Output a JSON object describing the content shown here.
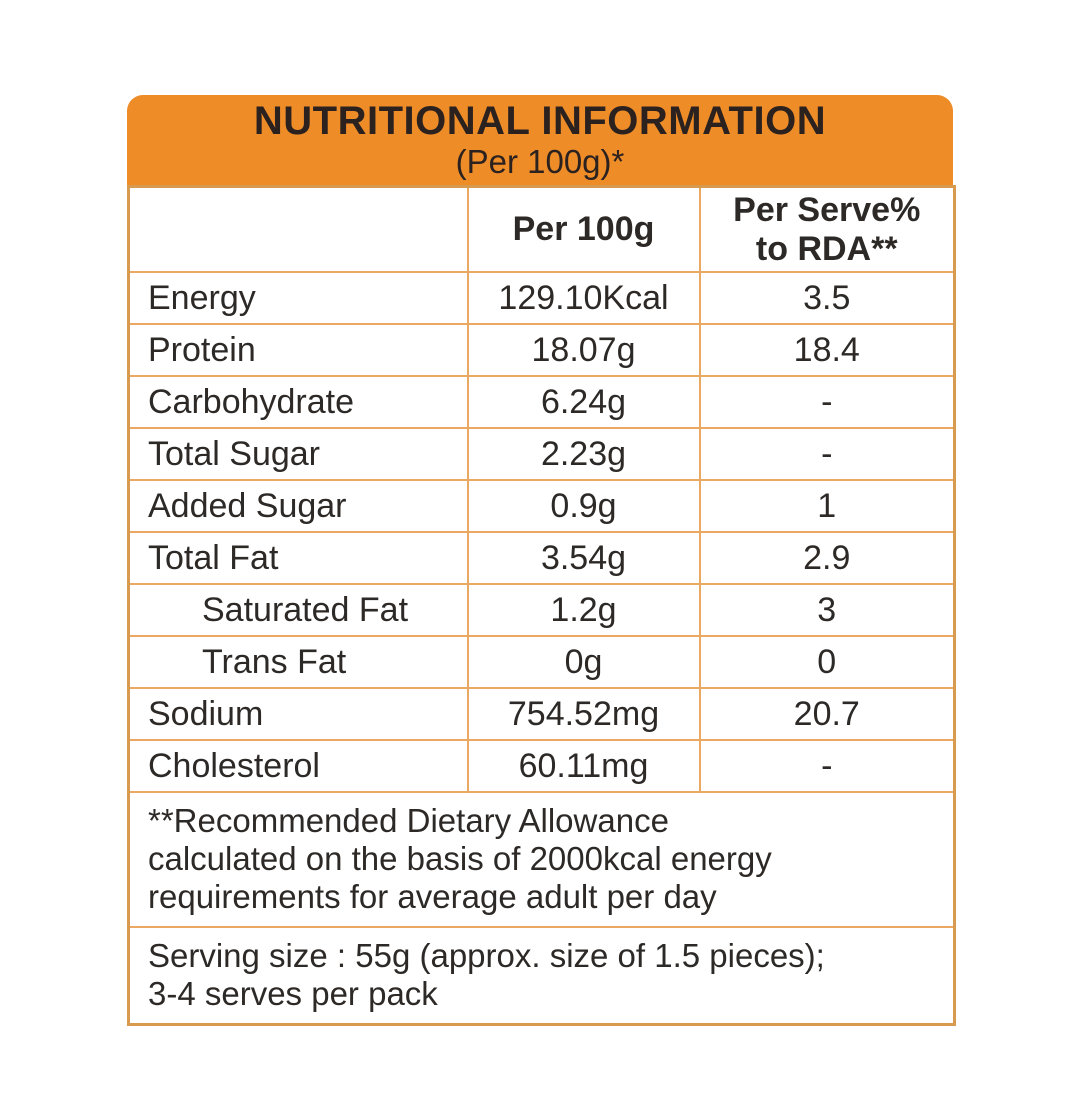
{
  "colors": {
    "accent_orange": "#ee8c28",
    "grid_line": "#eaa863",
    "outer_border": "#d89a4e",
    "text": "#2d2926"
  },
  "header": {
    "title": "NUTRITIONAL INFORMATION",
    "subtitle": "(Per 100g)*"
  },
  "table": {
    "column_headers": {
      "per_100g": "Per 100g",
      "per_serve_line1": "Per Serve%",
      "per_serve_line2": "to RDA**"
    },
    "rows": [
      {
        "label": "Energy",
        "per_100g": "129.10Kcal",
        "per_serve_rda": "3.5"
      },
      {
        "label": "Protein",
        "per_100g": "18.07g",
        "per_serve_rda": "18.4"
      },
      {
        "label": "Carbohydrate",
        "per_100g": "6.24g",
        "per_serve_rda": "-"
      },
      {
        "label": "Total Sugar",
        "per_100g": "2.23g",
        "per_serve_rda": "-"
      },
      {
        "label": "Added Sugar",
        "per_100g": "0.9g",
        "per_serve_rda": "1"
      },
      {
        "label": "Total Fat",
        "per_100g": "3.54g",
        "per_serve_rda": "2.9"
      },
      {
        "label": "Saturated Fat",
        "per_100g": "1.2g",
        "per_serve_rda": "3"
      },
      {
        "label": "Trans Fat",
        "per_100g": "0g",
        "per_serve_rda": "0"
      },
      {
        "label": "Sodium",
        "per_100g": "754.52mg",
        "per_serve_rda": "20.7"
      },
      {
        "label": "Cholesterol",
        "per_100g": "60.11mg",
        "per_serve_rda": "-"
      }
    ]
  },
  "footnotes": {
    "rda_note_lines": [
      "**Recommended Dietary Allowance",
      "calculated on the basis of 2000kcal energy",
      "requirements for average adult per day"
    ],
    "serving_note_lines": [
      "Serving size : 55g (approx. size of 1.5 pieces);",
      "3-4 serves per pack"
    ]
  }
}
